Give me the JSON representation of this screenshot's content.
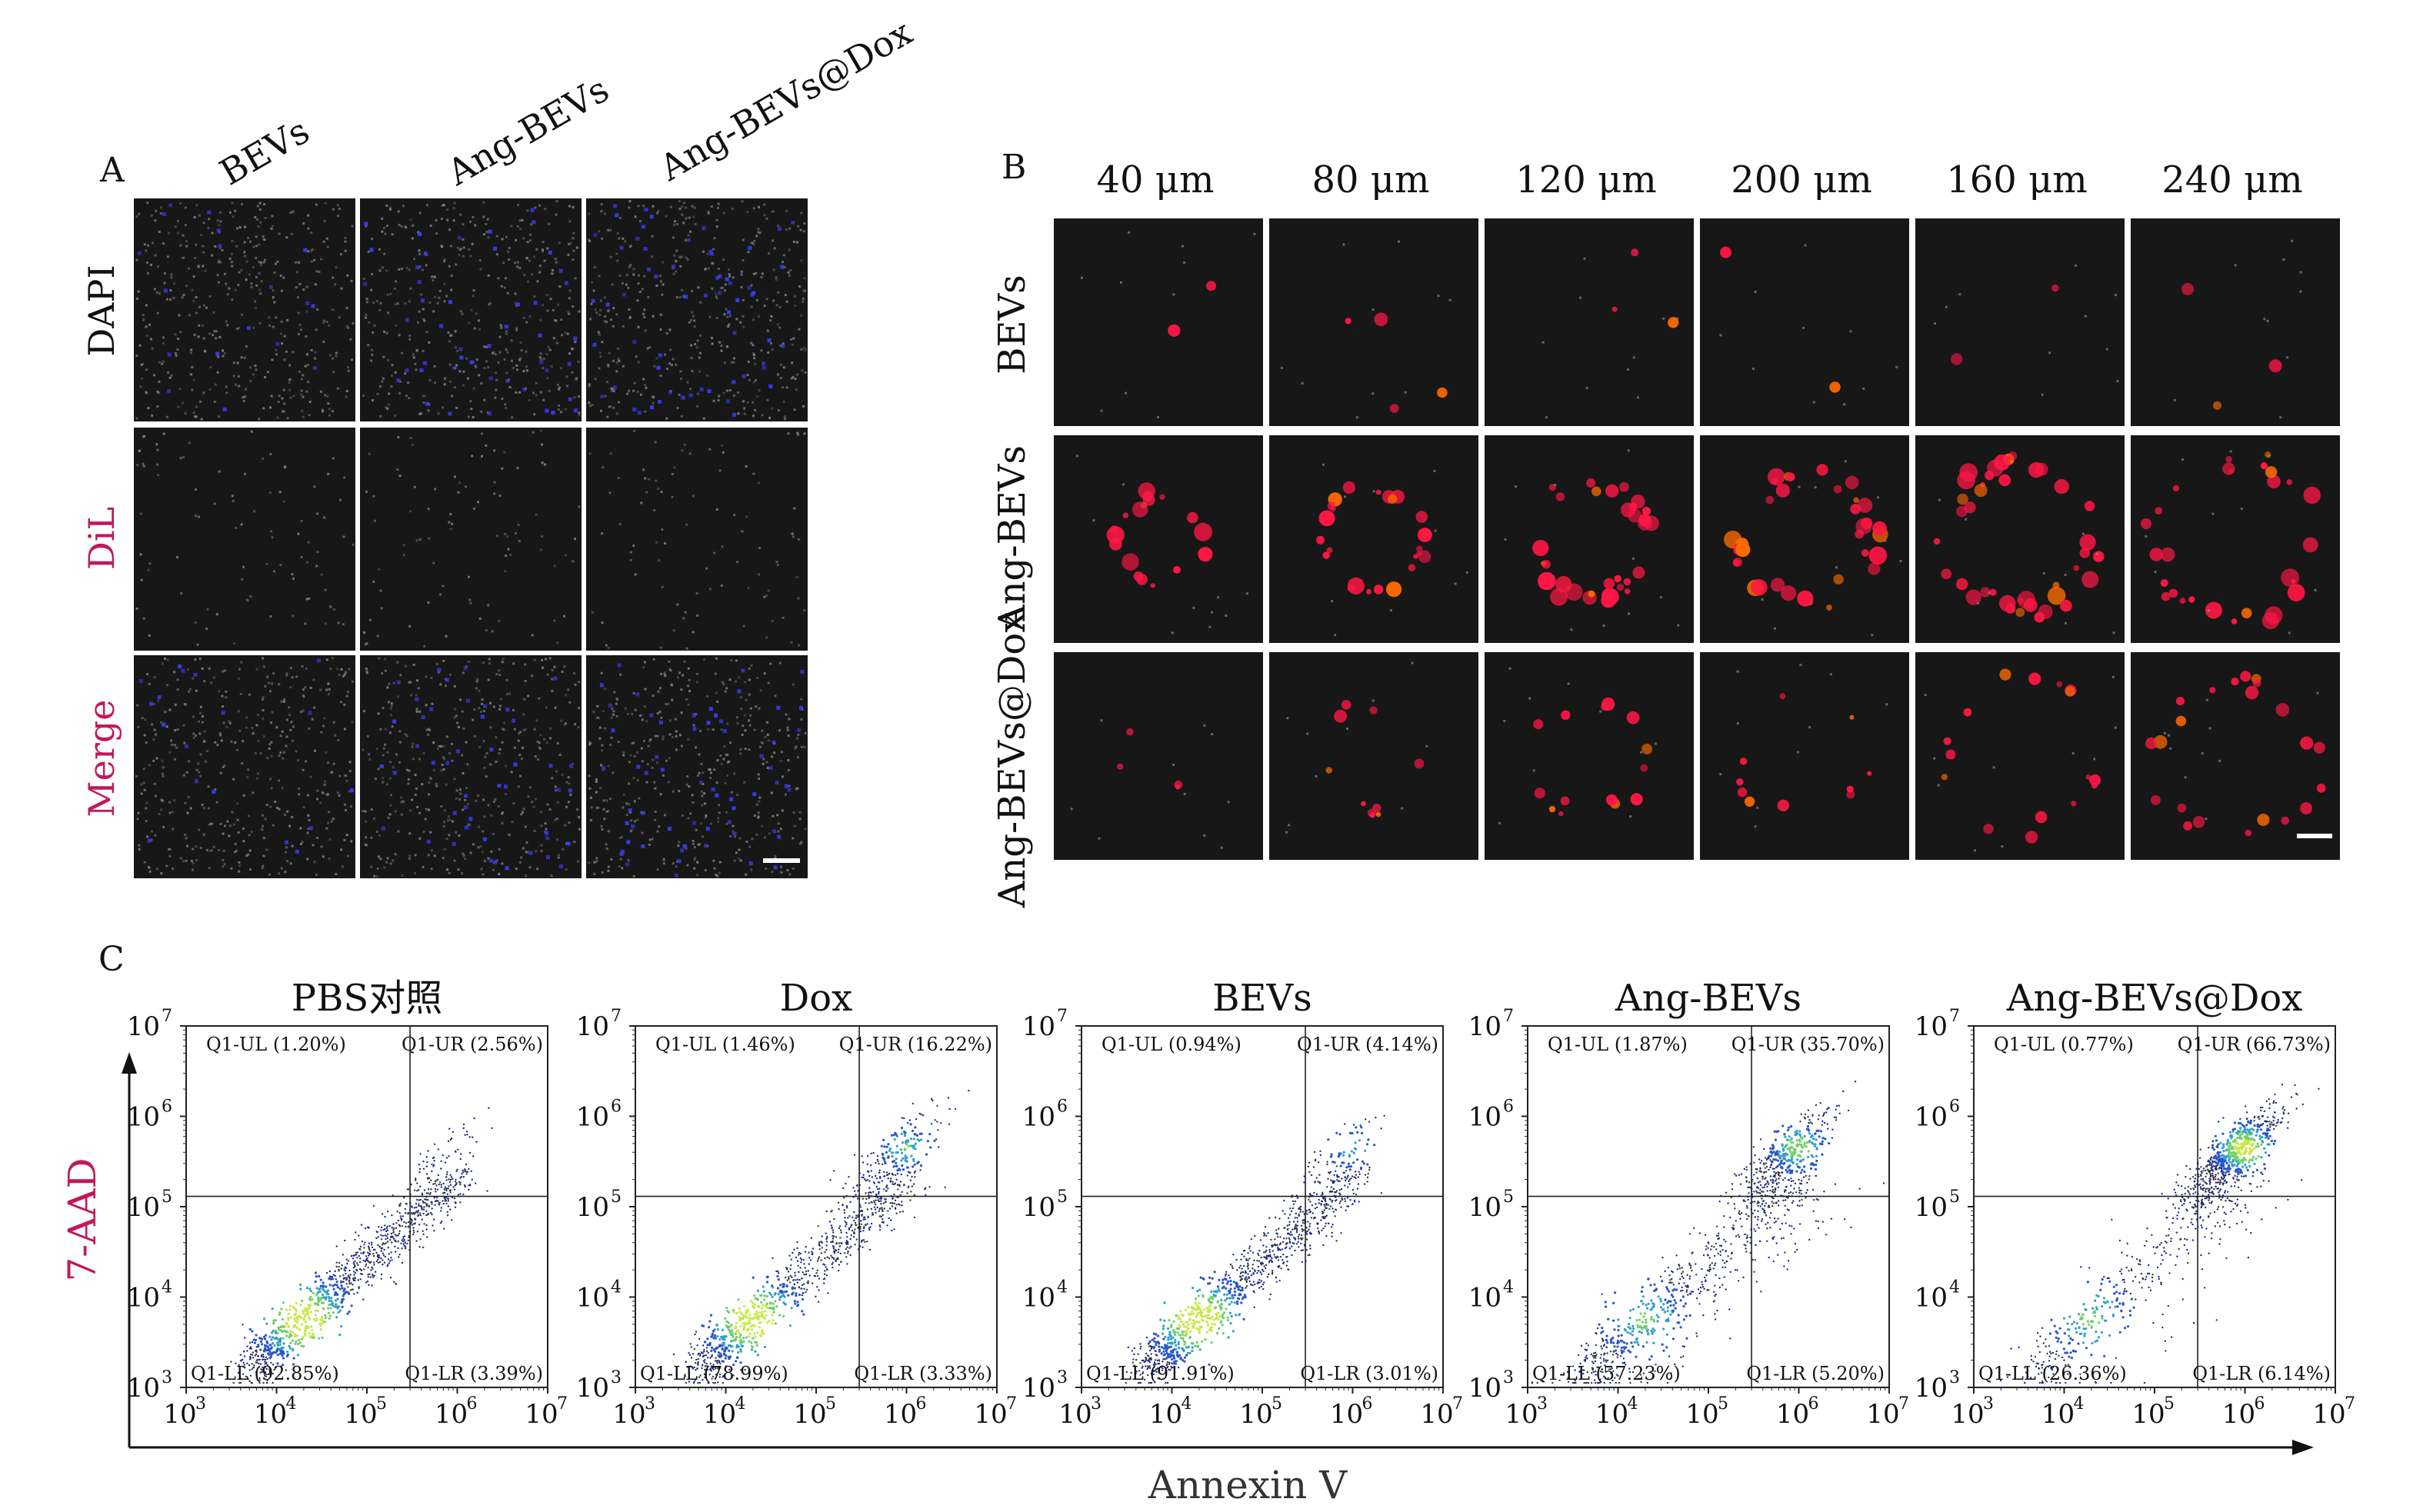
{
  "panel_a": {
    "letter": "A",
    "columns": [
      "BEVs",
      "Ang-BEVs",
      "Ang-BEVs@Dox"
    ],
    "rows": [
      {
        "label": "DAPI",
        "color": "#111111"
      },
      {
        "label": "DiL",
        "color": "#c2185b"
      },
      {
        "label": "Merge",
        "color": "#c2185b"
      }
    ]
  },
  "panel_b": {
    "letter": "B",
    "columns": [
      "40 μm",
      "80 μm",
      "120 μm",
      "200 μm",
      "160 μm",
      "240 μm"
    ],
    "rows": [
      "BEVs",
      "Ang-BEVs",
      "Ang-BEVs@Dox"
    ]
  },
  "panel_c": {
    "letter": "C",
    "x_axis_title": "Annexin V",
    "y_axis_title": "7-AAD",
    "y_axis_color": "#c2185b",
    "chart_data": [
      {
        "type": "scatter",
        "title": "PBS对照",
        "xlim": [
          1000,
          10000000
        ],
        "ylim": [
          1000,
          10000000
        ],
        "scale": "log",
        "quadrants": {
          "UL": "Q1-UL (1.20%)",
          "UR": "Q1-UR (2.56%)",
          "LL": "Q1-LL (92.85%)",
          "LR": "Q1-LR (3.39%)"
        }
      },
      {
        "type": "scatter",
        "title": "Dox",
        "xlim": [
          1000,
          10000000
        ],
        "ylim": [
          1000,
          10000000
        ],
        "scale": "log",
        "quadrants": {
          "UL": "Q1-UL (1.46%)",
          "UR": "Q1-UR (16.22%)",
          "LL": "Q1-LL (78.99%)",
          "LR": "Q1-LR (3.33%)"
        }
      },
      {
        "type": "scatter",
        "title": "BEVs",
        "xlim": [
          1000,
          10000000
        ],
        "ylim": [
          1000,
          10000000
        ],
        "scale": "log",
        "quadrants": {
          "UL": "Q1-UL (0.94%)",
          "UR": "Q1-UR (4.14%)",
          "LL": "Q1-LL (91.91%)",
          "LR": "Q1-LR (3.01%)"
        }
      },
      {
        "type": "scatter",
        "title": "Ang-BEVs",
        "xlim": [
          1000,
          10000000
        ],
        "ylim": [
          1000,
          10000000
        ],
        "scale": "log",
        "quadrants": {
          "UL": "Q1-UL (1.87%)",
          "UR": "Q1-UR (35.70%)",
          "LL": "Q1-LL (57.23%)",
          "LR": "Q1-LR (5.20%)"
        }
      },
      {
        "type": "scatter",
        "title": "Ang-BEVs@Dox",
        "xlim": [
          1000,
          10000000
        ],
        "ylim": [
          1000,
          10000000
        ],
        "scale": "log",
        "quadrants": {
          "UL": "Q1-UL (0.77%)",
          "UR": "Q1-UR (66.73%)",
          "LL": "Q1-LL (26.36%)",
          "LR": "Q1-LR (6.14%)"
        }
      }
    ],
    "tick_labels": [
      "10",
      "10",
      "10",
      "10",
      "10"
    ],
    "tick_exponents": [
      "3",
      "4",
      "5",
      "6",
      "7"
    ],
    "gate": {
      "x": 300000,
      "y": 130000
    }
  },
  "colors": {
    "micro_bg": "#171717",
    "dapi_blue": "#3a3dff",
    "dil_red": "#ff1744",
    "dot_grey": "#8a8a8a",
    "accent_magenta": "#c2185b",
    "density": [
      "#1a2a9c",
      "#2a56c8",
      "#33a0c8",
      "#6fcf6a",
      "#c8e84a"
    ]
  }
}
